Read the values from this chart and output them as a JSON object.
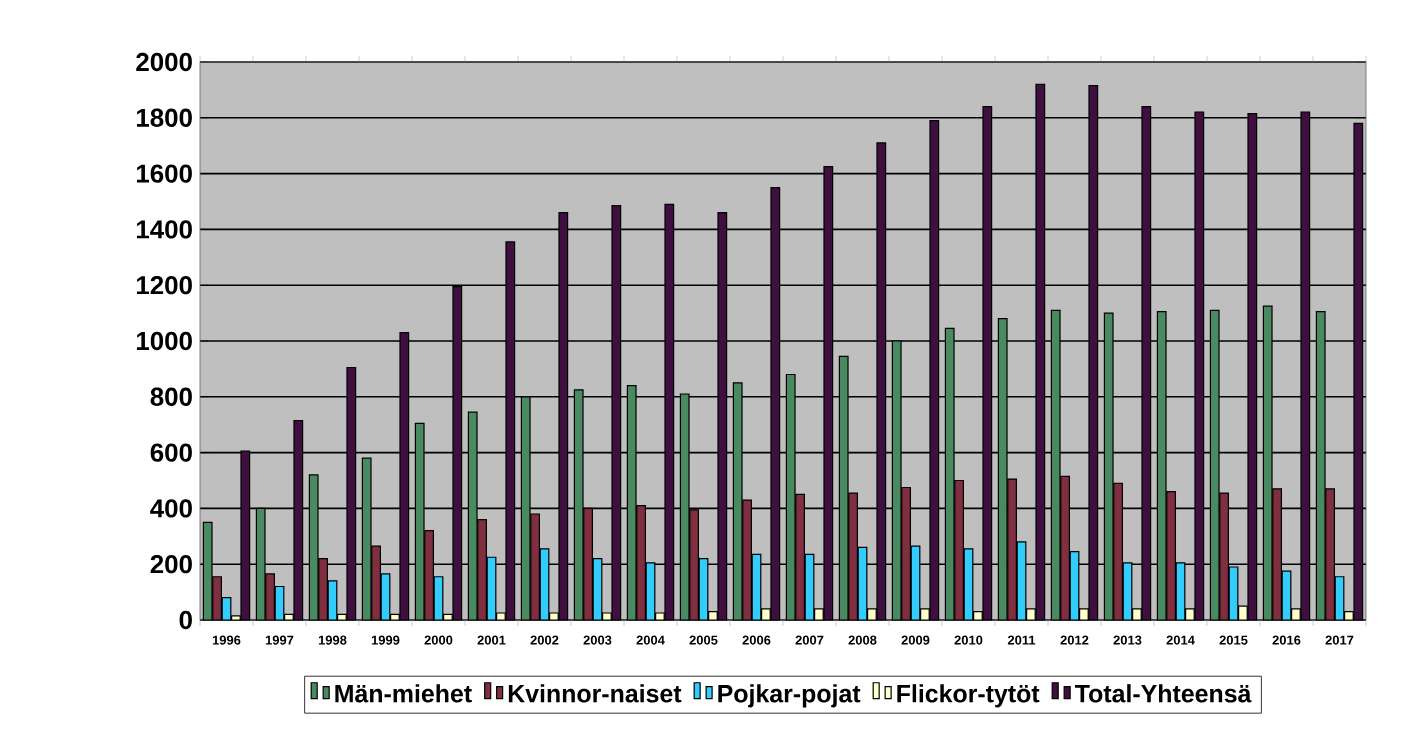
{
  "chart_data": {
    "type": "bar",
    "categories": [
      "1996",
      "1997",
      "1998",
      "1999",
      "2000",
      "2001",
      "2002",
      "2003",
      "2004",
      "2005",
      "2006",
      "2007",
      "2008",
      "2009",
      "2010",
      "2011",
      "2012",
      "2013",
      "2014",
      "2015",
      "2016",
      "2017"
    ],
    "series": [
      {
        "name": "Män-miehet",
        "color": "#4a8a60",
        "values": [
          350,
          400,
          520,
          580,
          705,
          745,
          800,
          825,
          840,
          810,
          850,
          880,
          945,
          1000,
          1045,
          1080,
          1110,
          1100,
          1105,
          1110,
          1125,
          1105
        ]
      },
      {
        "name": "Kvinnor-naiset",
        "color": "#7f2f3f",
        "values": [
          155,
          165,
          220,
          265,
          320,
          360,
          380,
          400,
          410,
          395,
          430,
          450,
          455,
          475,
          500,
          505,
          515,
          490,
          460,
          455,
          470,
          470
        ]
      },
      {
        "name": "Pojkar-pojat",
        "color": "#33ccff",
        "values": [
          80,
          120,
          140,
          165,
          155,
          225,
          255,
          220,
          205,
          220,
          235,
          235,
          260,
          265,
          255,
          280,
          245,
          205,
          205,
          190,
          175,
          155
        ]
      },
      {
        "name": "Flickor-tytöt",
        "color": "#ffffcc",
        "values": [
          15,
          20,
          20,
          20,
          20,
          25,
          25,
          25,
          25,
          30,
          40,
          40,
          40,
          40,
          30,
          40,
          40,
          40,
          40,
          50,
          40,
          30
        ]
      },
      {
        "name": "Total-Yhteensä",
        "color": "#3f0f3f",
        "values": [
          605,
          715,
          905,
          1030,
          1195,
          1355,
          1460,
          1485,
          1490,
          1460,
          1550,
          1625,
          1710,
          1790,
          1840,
          1920,
          1915,
          1840,
          1820,
          1815,
          1820,
          1780
        ]
      }
    ],
    "ylim": [
      0,
      2000
    ],
    "yticks": [
      0,
      200,
      400,
      600,
      800,
      1000,
      1200,
      1400,
      1600,
      1800,
      2000
    ],
    "grid": "y",
    "legend": "bottom"
  }
}
